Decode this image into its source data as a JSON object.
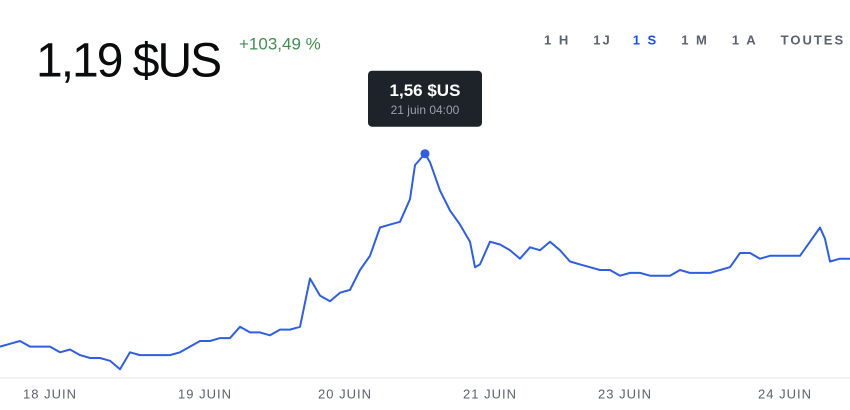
{
  "chart_data": {
    "type": "line",
    "price": "1,19 $US",
    "change": "+103,49 %",
    "change_color": "#3f8f52",
    "ranges": [
      "1 H",
      "1J",
      "1 S",
      "1 M",
      "1 A",
      "TOUTES"
    ],
    "active_range": 2,
    "active_color": "#1652f0",
    "tooltip": {
      "value": "1,56 $US",
      "date": "21 juin 04:00"
    },
    "color": "#2f5fe0",
    "x": [
      0,
      2,
      4,
      6,
      8,
      10,
      12,
      14,
      16,
      18,
      20,
      22,
      24,
      26,
      28,
      30,
      32,
      34,
      36,
      38,
      40,
      42,
      44,
      46,
      48,
      50,
      52,
      54,
      56,
      58,
      60,
      62,
      64,
      66,
      68,
      70,
      72,
      74,
      76,
      78,
      80,
      82,
      83,
      84,
      85,
      86,
      88,
      90,
      92,
      94,
      95,
      96,
      98,
      100,
      102,
      104,
      106,
      108,
      110,
      112,
      114,
      116,
      118,
      120,
      122,
      124,
      126,
      128,
      130,
      132,
      134,
      136,
      138,
      140,
      142,
      144,
      146,
      148,
      150,
      152,
      154,
      156,
      158,
      160,
      162,
      164,
      165,
      166,
      168,
      170
    ],
    "values": [
      0.88,
      0.89,
      0.9,
      0.88,
      0.88,
      0.88,
      0.86,
      0.87,
      0.85,
      0.84,
      0.84,
      0.83,
      0.8,
      0.86,
      0.85,
      0.85,
      0.85,
      0.85,
      0.86,
      0.88,
      0.9,
      0.9,
      0.91,
      0.91,
      0.95,
      0.93,
      0.93,
      0.92,
      0.94,
      0.94,
      0.95,
      1.12,
      1.06,
      1.04,
      1.07,
      1.08,
      1.15,
      1.2,
      1.3,
      1.31,
      1.32,
      1.4,
      1.52,
      1.54,
      1.56,
      1.53,
      1.43,
      1.36,
      1.31,
      1.25,
      1.16,
      1.17,
      1.25,
      1.24,
      1.22,
      1.19,
      1.23,
      1.22,
      1.25,
      1.22,
      1.18,
      1.17,
      1.16,
      1.15,
      1.15,
      1.13,
      1.14,
      1.14,
      1.13,
      1.13,
      1.13,
      1.15,
      1.14,
      1.14,
      1.14,
      1.15,
      1.16,
      1.21,
      1.21,
      1.19,
      1.2,
      1.2,
      1.2,
      1.2,
      1.25,
      1.3,
      1.26,
      1.18,
      1.19,
      1.19
    ],
    "xlim": [
      0,
      170
    ],
    "ylim": [
      0.78,
      1.7
    ],
    "xticks": [
      {
        "value": 10,
        "label": "18 JUIN"
      },
      {
        "value": 41,
        "label": "19 JUIN"
      },
      {
        "value": 69,
        "label": "20 JUIN"
      },
      {
        "value": 98,
        "label": "21 JUIN"
      },
      {
        "value": 125,
        "label": "23 JUIN"
      },
      {
        "value": 157,
        "label": "24 JUIN"
      }
    ]
  }
}
